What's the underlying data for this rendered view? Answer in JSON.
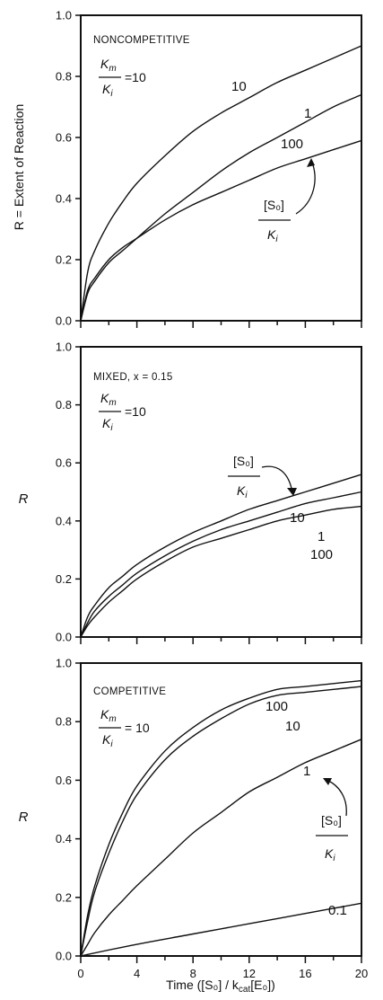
{
  "chart_data": [
    {
      "type": "line",
      "panel_label": "NONCOMPETITIVE",
      "ratio_top": "K",
      "ratio_top_sub": "m",
      "ratio_bottom": "K",
      "ratio_bottom_sub": "i",
      "ratio_value": "=10",
      "ylabel": "R = Extent of Reaction",
      "xlabel": "",
      "xlim": [
        0,
        20
      ],
      "ylim": [
        0,
        1
      ],
      "yticks": [
        "0.0",
        "0.2",
        "0.4",
        "0.6",
        "0.8",
        "1.0"
      ],
      "series": [
        {
          "name": "10",
          "x": [
            0,
            0.5,
            1,
            2,
            3,
            4,
            6,
            8,
            10,
            12,
            14,
            16,
            18,
            20
          ],
          "values": [
            0,
            0.16,
            0.23,
            0.32,
            0.39,
            0.45,
            0.54,
            0.62,
            0.68,
            0.73,
            0.78,
            0.82,
            0.86,
            0.9
          ]
        },
        {
          "name": "1",
          "x": [
            0,
            0.5,
            1,
            2,
            3,
            4,
            6,
            8,
            10,
            12,
            14,
            16,
            18,
            20
          ],
          "values": [
            0,
            0.09,
            0.13,
            0.19,
            0.23,
            0.27,
            0.35,
            0.42,
            0.49,
            0.55,
            0.6,
            0.65,
            0.7,
            0.74
          ]
        },
        {
          "name": "100",
          "x": [
            0,
            0.5,
            1,
            2,
            3,
            4,
            6,
            8,
            10,
            12,
            14,
            16,
            18,
            20
          ],
          "values": [
            0,
            0.1,
            0.14,
            0.2,
            0.24,
            0.27,
            0.33,
            0.38,
            0.42,
            0.46,
            0.5,
            0.53,
            0.56,
            0.59
          ]
        }
      ],
      "legend_title_top": "[S₀]",
      "legend_title_bottom": "K",
      "legend_title_sub": "i"
    },
    {
      "type": "line",
      "panel_label": "MIXED, x = 0.15",
      "ratio_top": "K",
      "ratio_top_sub": "m",
      "ratio_bottom": "K",
      "ratio_bottom_sub": "i",
      "ratio_value": "=10",
      "ylabel": "R",
      "xlabel": "",
      "xlim": [
        0,
        20
      ],
      "ylim": [
        0,
        1
      ],
      "yticks": [
        "0.0",
        "0.2",
        "0.4",
        "0.6",
        "0.8",
        "1.0"
      ],
      "series": [
        {
          "name": "10",
          "x": [
            0,
            0.5,
            1,
            2,
            3,
            4,
            6,
            8,
            10,
            12,
            14,
            16,
            18,
            20
          ],
          "values": [
            0,
            0.07,
            0.11,
            0.17,
            0.21,
            0.25,
            0.31,
            0.36,
            0.4,
            0.44,
            0.47,
            0.5,
            0.53,
            0.56
          ]
        },
        {
          "name": "1",
          "x": [
            0,
            0.5,
            1,
            2,
            3,
            4,
            6,
            8,
            10,
            12,
            14,
            16,
            18,
            20
          ],
          "values": [
            0,
            0.05,
            0.09,
            0.14,
            0.18,
            0.22,
            0.28,
            0.33,
            0.37,
            0.4,
            0.43,
            0.46,
            0.48,
            0.5
          ]
        },
        {
          "name": "100",
          "x": [
            0,
            0.5,
            1,
            2,
            3,
            4,
            6,
            8,
            10,
            12,
            14,
            16,
            18,
            20
          ],
          "values": [
            0,
            0.04,
            0.07,
            0.12,
            0.16,
            0.2,
            0.26,
            0.31,
            0.34,
            0.37,
            0.4,
            0.42,
            0.44,
            0.45
          ]
        }
      ],
      "legend_title_top": "[S₀]",
      "legend_title_bottom": "K",
      "legend_title_sub": "i"
    },
    {
      "type": "line",
      "panel_label": "COMPETITIVE",
      "ratio_top": "K",
      "ratio_top_sub": "m",
      "ratio_bottom": "K",
      "ratio_bottom_sub": "i",
      "ratio_value": "= 10",
      "ylabel": "R",
      "xlabel": "Time ([S₀] / k",
      "xlabel_sub": "cat",
      "xlabel_end": "[E₀])",
      "xlim": [
        0,
        20
      ],
      "ylim": [
        0,
        1
      ],
      "xticks": [
        "0",
        "4",
        "8",
        "12",
        "16",
        "20"
      ],
      "yticks": [
        "0.0",
        "0.2",
        "0.4",
        "0.6",
        "0.8",
        "1.0"
      ],
      "series": [
        {
          "name": "100",
          "x": [
            0,
            0.5,
            1,
            2,
            3,
            4,
            6,
            8,
            10,
            12,
            14,
            16,
            18,
            20
          ],
          "values": [
            0,
            0.14,
            0.24,
            0.38,
            0.49,
            0.58,
            0.7,
            0.78,
            0.84,
            0.88,
            0.91,
            0.92,
            0.93,
            0.94
          ]
        },
        {
          "name": "10",
          "x": [
            0,
            0.5,
            1,
            2,
            3,
            4,
            6,
            8,
            10,
            12,
            14,
            16,
            18,
            20
          ],
          "values": [
            0,
            0.12,
            0.22,
            0.35,
            0.46,
            0.55,
            0.67,
            0.75,
            0.81,
            0.86,
            0.89,
            0.9,
            0.91,
            0.92
          ]
        },
        {
          "name": "1",
          "x": [
            0,
            0.5,
            1,
            2,
            3,
            4,
            6,
            8,
            10,
            12,
            14,
            16,
            18,
            20
          ],
          "values": [
            0,
            0.04,
            0.08,
            0.14,
            0.19,
            0.24,
            0.33,
            0.42,
            0.49,
            0.56,
            0.61,
            0.66,
            0.7,
            0.74
          ]
        },
        {
          "name": "0.1",
          "x": [
            0,
            4,
            8,
            12,
            16,
            20
          ],
          "values": [
            0,
            0.04,
            0.075,
            0.11,
            0.145,
            0.18
          ]
        }
      ],
      "legend_title_top": "[S₀]",
      "legend_title_bottom": "K",
      "legend_title_sub": "i"
    }
  ]
}
